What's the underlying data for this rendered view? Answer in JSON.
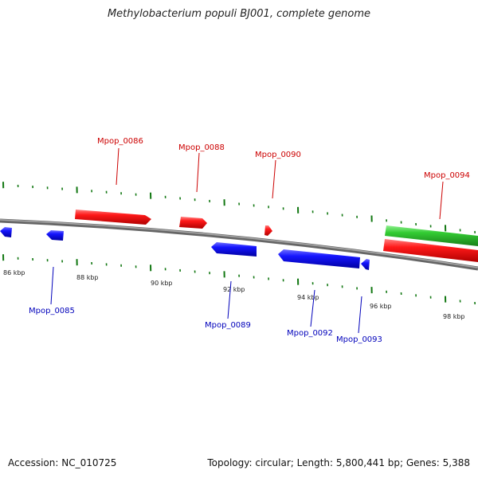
{
  "title": "Methylobacterium populi BJ001, complete genome",
  "footer": {
    "accession": "Accession: NC_010725",
    "summary": "Topology: circular; Length: 5,800,441 bp; Genes: 5,388"
  },
  "colors": {
    "forward": "#ee1111",
    "reverse": "#1111ee",
    "rna": "#33cc33",
    "backbone": "#888888",
    "tick": "#117711",
    "forward_label": "#cc0000",
    "reverse_label": "#0000bb"
  },
  "scale_labels": [
    "86 kbp",
    "88 kbp",
    "90 kbp",
    "92 kbp",
    "94 kbp",
    "96 kbp",
    "98 kbp"
  ],
  "gene_labels": [
    {
      "name": "Mpop_0086",
      "strand": "forward"
    },
    {
      "name": "Mpop_0088",
      "strand": "forward"
    },
    {
      "name": "Mpop_0090",
      "strand": "forward"
    },
    {
      "name": "Mpop_0094",
      "strand": "forward"
    },
    {
      "name": "Mpop_0085",
      "strand": "reverse"
    },
    {
      "name": "Mpop_0089",
      "strand": "reverse"
    },
    {
      "name": "Mpop_0092",
      "strand": "reverse"
    },
    {
      "name": "Mpop_0093",
      "strand": "reverse"
    }
  ]
}
